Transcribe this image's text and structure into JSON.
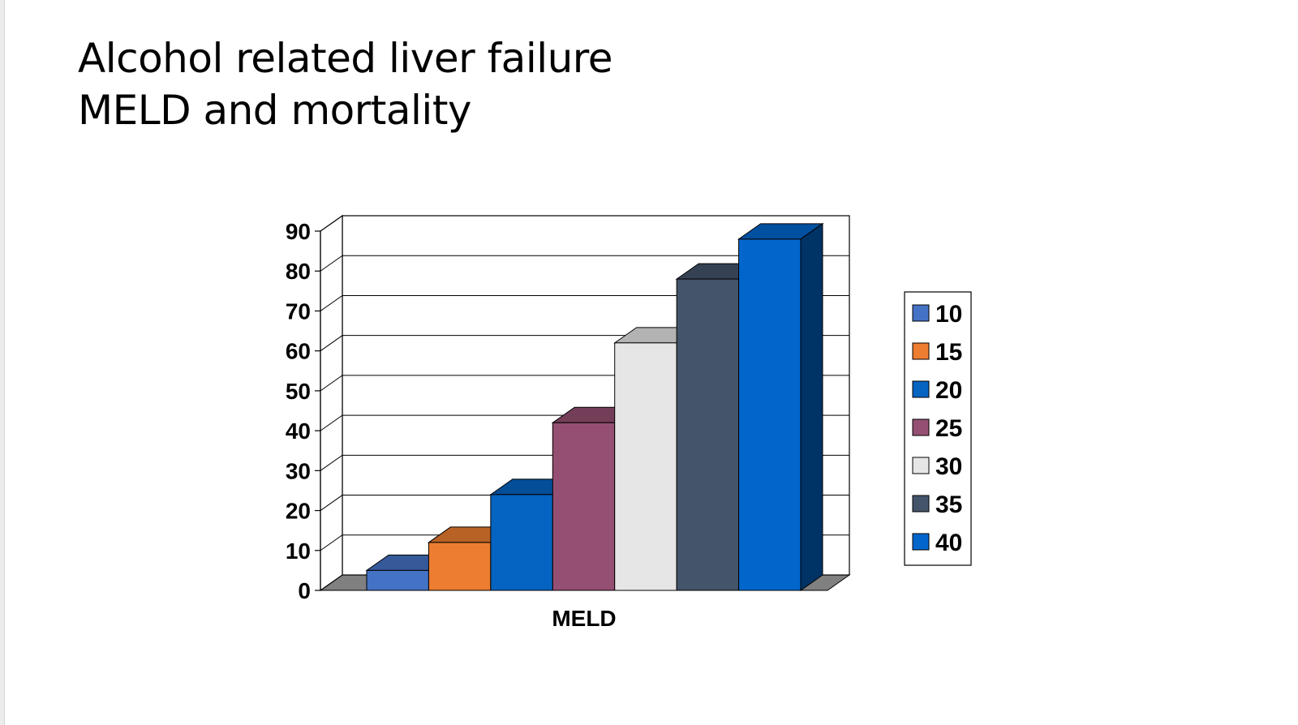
{
  "slide": {
    "title_line1": "Alcohol related liver failure",
    "title_line2": "MELD and mortality"
  },
  "chart_data": {
    "type": "bar",
    "style": "3d-clustered-column",
    "title": "",
    "xlabel": "MELD",
    "ylabel": "",
    "ylim": [
      0,
      90
    ],
    "y_ticks": [
      0,
      10,
      20,
      30,
      40,
      50,
      60,
      70,
      80,
      90
    ],
    "grid": true,
    "legend_position": "right",
    "categories": [
      "MELD"
    ],
    "series": [
      {
        "name": "10",
        "values": [
          5
        ],
        "color": "#4472C4"
      },
      {
        "name": "15",
        "values": [
          12
        ],
        "color": "#ED7D31"
      },
      {
        "name": "20",
        "values": [
          24
        ],
        "color": "#0563C1"
      },
      {
        "name": "25",
        "values": [
          42
        ],
        "color": "#954F72"
      },
      {
        "name": "30",
        "values": [
          62
        ],
        "color": "#E7E6E6"
      },
      {
        "name": "35",
        "values": [
          78
        ],
        "color": "#44546A"
      },
      {
        "name": "40",
        "values": [
          88
        ],
        "color": "#0066CC"
      }
    ]
  }
}
